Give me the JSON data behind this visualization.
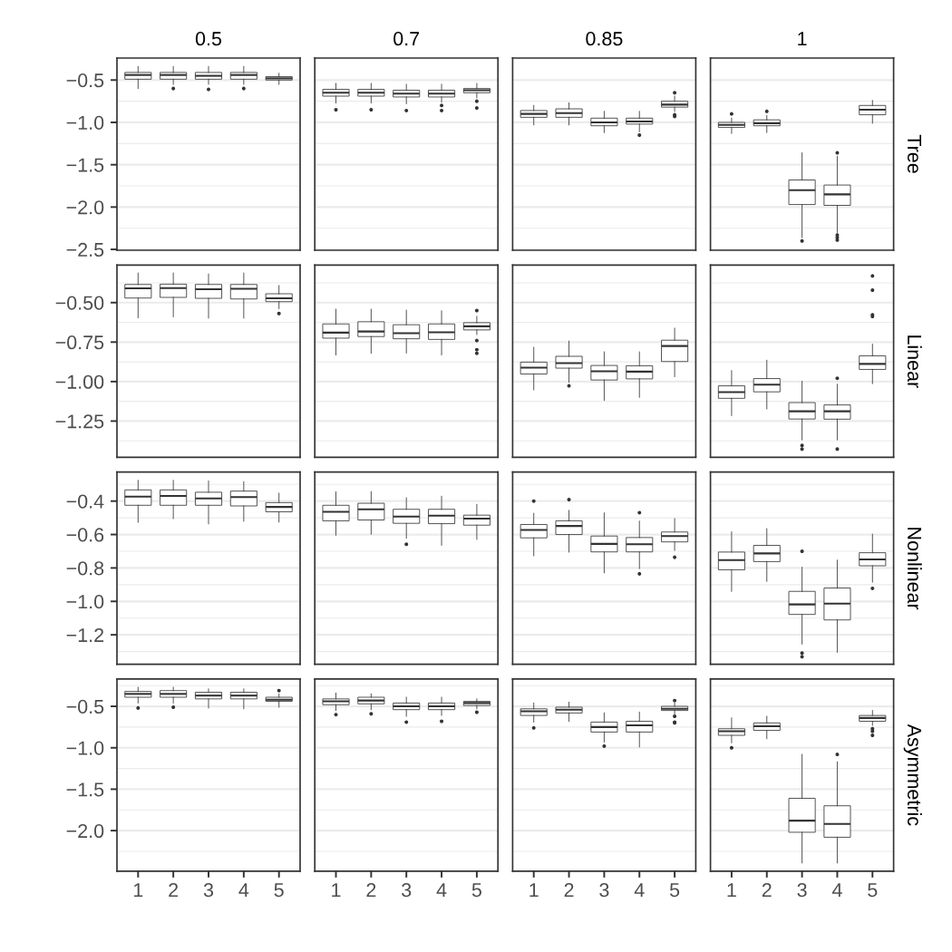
{
  "chart_data": [
    {
      "type": "box",
      "title": "0.5",
      "categories": [
        "1",
        "2",
        "3",
        "4",
        "5"
      ],
      "color": "#333333",
      "grid": "y",
      "tick_labels": "y",
      "ylim": [
        -2.51,
        -0.24
      ],
      "yticks": [
        {
          "value": -0.5,
          "label": "−0.5"
        },
        {
          "value": -1.0,
          "label": "−1.0"
        },
        {
          "value": -1.5,
          "label": "−1.5"
        },
        {
          "value": -2.0,
          "label": "−2.0"
        },
        {
          "value": -2.5,
          "label": "−2.5"
        }
      ],
      "boxes": [
        {
          "low": -0.6,
          "q1": -0.49,
          "median": -0.44,
          "q3": -0.41,
          "high": -0.34
        },
        {
          "low": -0.55,
          "q1": -0.49,
          "median": -0.44,
          "q3": -0.41,
          "high": -0.34,
          "outliers": [
            -0.6
          ]
        },
        {
          "low": -0.55,
          "q1": -0.49,
          "median": -0.45,
          "q3": -0.41,
          "high": -0.34,
          "outliers": [
            -0.61
          ]
        },
        {
          "low": -0.55,
          "q1": -0.49,
          "median": -0.44,
          "q3": -0.41,
          "high": -0.34,
          "outliers": [
            -0.6
          ]
        },
        {
          "low": -0.55,
          "q1": -0.5,
          "median": -0.48,
          "q3": -0.46,
          "high": -0.42
        }
      ]
    },
    {
      "type": "box",
      "title": "0.7",
      "categories": [
        "1",
        "2",
        "3",
        "4",
        "5"
      ],
      "color": "#333333",
      "grid": "y",
      "tick_labels": false,
      "ylim": [
        -2.51,
        -0.24
      ],
      "yticks": [
        -0.5,
        -1.0,
        -1.5,
        -2.0,
        -2.5
      ],
      "boxes": [
        {
          "low": -0.77,
          "q1": -0.69,
          "median": -0.65,
          "q3": -0.61,
          "high": -0.54,
          "outliers": [
            -0.85
          ]
        },
        {
          "low": -0.77,
          "q1": -0.69,
          "median": -0.65,
          "q3": -0.61,
          "high": -0.54,
          "outliers": [
            -0.85
          ]
        },
        {
          "low": -0.78,
          "q1": -0.7,
          "median": -0.66,
          "q3": -0.62,
          "high": -0.55,
          "outliers": [
            -0.86
          ]
        },
        {
          "low": -0.76,
          "q1": -0.7,
          "median": -0.66,
          "q3": -0.62,
          "high": -0.55,
          "outliers": [
            -0.8,
            -0.86
          ]
        },
        {
          "low": -0.71,
          "q1": -0.65,
          "median": -0.62,
          "q3": -0.6,
          "high": -0.54,
          "outliers": [
            -0.75,
            -0.83
          ]
        }
      ]
    },
    {
      "type": "box",
      "title": "0.85",
      "categories": [
        "1",
        "2",
        "3",
        "4",
        "5"
      ],
      "color": "#333333",
      "grid": "y",
      "tick_labels": false,
      "ylim": [
        -2.51,
        -0.24
      ],
      "yticks": [
        -0.5,
        -1.0,
        -1.5,
        -2.0,
        -2.5
      ],
      "boxes": [
        {
          "low": -1.03,
          "q1": -0.94,
          "median": -0.9,
          "q3": -0.86,
          "high": -0.8
        },
        {
          "low": -1.03,
          "q1": -0.94,
          "median": -0.89,
          "q3": -0.84,
          "high": -0.77
        },
        {
          "low": -1.12,
          "q1": -1.04,
          "median": -1.0,
          "q3": -0.95,
          "high": -0.87
        },
        {
          "low": -1.11,
          "q1": -1.02,
          "median": -0.99,
          "q3": -0.95,
          "high": -0.87,
          "outliers": [
            -1.15
          ]
        },
        {
          "low": -0.87,
          "q1": -0.82,
          "median": -0.79,
          "q3": -0.75,
          "high": -0.69,
          "outliers": [
            -0.65,
            -0.91,
            -0.93
          ]
        }
      ]
    },
    {
      "type": "box",
      "title": "1",
      "y2label": "Tree",
      "categories": [
        "1",
        "2",
        "3",
        "4",
        "5"
      ],
      "color": "#333333",
      "grid": "y",
      "tick_labels": false,
      "ylim": [
        -2.51,
        -0.24
      ],
      "yticks": [
        -0.5,
        -1.0,
        -1.5,
        -2.0,
        -2.5
      ],
      "boxes": [
        {
          "low": -1.13,
          "q1": -1.06,
          "median": -1.03,
          "q3": -1.0,
          "high": -0.95,
          "outliers": [
            -0.9
          ]
        },
        {
          "low": -1.12,
          "q1": -1.04,
          "median": -1.01,
          "q3": -0.97,
          "high": -0.92,
          "outliers": [
            -0.87
          ]
        },
        {
          "low": -2.36,
          "q1": -1.97,
          "median": -1.8,
          "q3": -1.68,
          "high": -1.36,
          "outliers": [
            -2.4
          ]
        },
        {
          "low": -2.3,
          "q1": -1.98,
          "median": -1.85,
          "q3": -1.74,
          "high": -1.4,
          "outliers": [
            -1.36,
            -2.33,
            -2.36,
            -2.39
          ]
        },
        {
          "low": -1.01,
          "q1": -0.91,
          "median": -0.85,
          "q3": -0.8,
          "high": -0.74
        }
      ]
    },
    {
      "type": "box",
      "categories": [
        "1",
        "2",
        "3",
        "4",
        "5"
      ],
      "color": "#333333",
      "grid": "y",
      "tick_labels": "y",
      "ylim": [
        -1.479,
        -0.262
      ],
      "yticks": [
        {
          "value": -0.5,
          "label": "−0.50"
        },
        {
          "value": -0.75,
          "label": "−0.75"
        },
        {
          "value": -1.0,
          "label": "−1.00"
        },
        {
          "value": -1.25,
          "label": "−1.25"
        }
      ],
      "boxes": [
        {
          "low": -0.596,
          "q1": -0.471,
          "median": -0.41,
          "q3": -0.385,
          "high": -0.313
        },
        {
          "low": -0.59,
          "q1": -0.467,
          "median": -0.408,
          "q3": -0.383,
          "high": -0.313
        },
        {
          "low": -0.598,
          "q1": -0.473,
          "median": -0.415,
          "q3": -0.385,
          "high": -0.319
        },
        {
          "low": -0.598,
          "q1": -0.477,
          "median": -0.412,
          "q3": -0.385,
          "high": -0.313
        },
        {
          "low": -0.538,
          "q1": -0.494,
          "median": -0.473,
          "q3": -0.444,
          "high": -0.392,
          "outliers": [
            -0.569
          ]
        }
      ]
    },
    {
      "type": "box",
      "categories": [
        "1",
        "2",
        "3",
        "4",
        "5"
      ],
      "color": "#333333",
      "grid": "y",
      "tick_labels": false,
      "ylim": [
        -1.479,
        -0.262
      ],
      "yticks": [
        -0.5,
        -0.75,
        -1.0,
        -1.25
      ],
      "boxes": [
        {
          "low": -0.831,
          "q1": -0.725,
          "median": -0.69,
          "q3": -0.635,
          "high": -0.542
        },
        {
          "low": -0.821,
          "q1": -0.715,
          "median": -0.683,
          "q3": -0.621,
          "high": -0.542
        },
        {
          "low": -0.819,
          "q1": -0.729,
          "median": -0.694,
          "q3": -0.64,
          "high": -0.548
        },
        {
          "low": -0.831,
          "q1": -0.733,
          "median": -0.688,
          "q3": -0.635,
          "high": -0.552
        },
        {
          "low": -0.702,
          "q1": -0.673,
          "median": -0.65,
          "q3": -0.627,
          "high": -0.587,
          "outliers": [
            -0.55,
            -0.74,
            -0.798,
            -0.821
          ]
        }
      ]
    },
    {
      "type": "box",
      "categories": [
        "1",
        "2",
        "3",
        "4",
        "5"
      ],
      "color": "#333333",
      "grid": "y",
      "tick_labels": false,
      "ylim": [
        -1.479,
        -0.262
      ],
      "yticks": [
        -0.5,
        -0.75,
        -1.0,
        -1.25
      ],
      "boxes": [
        {
          "low": -1.052,
          "q1": -0.952,
          "median": -0.912,
          "q3": -0.877,
          "high": -0.783
        },
        {
          "low": -1.004,
          "q1": -0.915,
          "median": -0.883,
          "q3": -0.84,
          "high": -0.744,
          "outliers": [
            -1.027
          ]
        },
        {
          "low": -1.119,
          "q1": -0.99,
          "median": -0.935,
          "q3": -0.898,
          "high": -0.812
        },
        {
          "low": -1.1,
          "q1": -0.983,
          "median": -0.937,
          "q3": -0.9,
          "high": -0.812
        },
        {
          "low": -0.969,
          "q1": -0.873,
          "median": -0.775,
          "q3": -0.738,
          "high": -0.662
        }
      ]
    },
    {
      "type": "box",
      "y2label": "Linear",
      "categories": [
        "1",
        "2",
        "3",
        "4",
        "5"
      ],
      "color": "#333333",
      "grid": "y",
      "tick_labels": false,
      "ylim": [
        -1.479,
        -0.262
      ],
      "yticks": [
        -0.5,
        -0.75,
        -1.0,
        -1.25
      ],
      "boxes": [
        {
          "low": -1.215,
          "q1": -1.106,
          "median": -1.067,
          "q3": -1.027,
          "high": -0.931
        },
        {
          "low": -1.173,
          "q1": -1.065,
          "median": -1.019,
          "q3": -0.981,
          "high": -0.865
        },
        {
          "low": -1.369,
          "q1": -1.237,
          "median": -1.188,
          "q3": -1.133,
          "high": -0.998,
          "outliers": [
            -1.404,
            -1.427
          ]
        },
        {
          "low": -1.369,
          "q1": -1.238,
          "median": -1.188,
          "q3": -1.148,
          "high": -1.017,
          "outliers": [
            -0.979,
            -1.427
          ]
        },
        {
          "low": -1.013,
          "q1": -0.923,
          "median": -0.888,
          "q3": -0.837,
          "high": -0.763,
          "outliers": [
            -0.331,
            -0.421,
            -0.577,
            -0.588
          ]
        }
      ]
    },
    {
      "type": "box",
      "categories": [
        "1",
        "2",
        "3",
        "4",
        "5"
      ],
      "color": "#333333",
      "grid": "y",
      "tick_labels": "y",
      "ylim": [
        -1.376,
        -0.226
      ],
      "yticks": [
        {
          "value": -0.4,
          "label": "−0.4"
        },
        {
          "value": -0.6,
          "label": "−0.6"
        },
        {
          "value": -0.8,
          "label": "−0.8"
        },
        {
          "value": -1.0,
          "label": "−1.0"
        },
        {
          "value": -1.2,
          "label": "−1.2"
        }
      ],
      "boxes": [
        {
          "low": -0.527,
          "q1": -0.425,
          "median": -0.373,
          "q3": -0.333,
          "high": -0.276
        },
        {
          "low": -0.505,
          "q1": -0.425,
          "median": -0.369,
          "q3": -0.333,
          "high": -0.276
        },
        {
          "low": -0.536,
          "q1": -0.425,
          "median": -0.384,
          "q3": -0.347,
          "high": -0.28
        },
        {
          "low": -0.52,
          "q1": -0.429,
          "median": -0.376,
          "q3": -0.34,
          "high": -0.284
        },
        {
          "low": -0.525,
          "q1": -0.464,
          "median": -0.435,
          "q3": -0.409,
          "high": -0.353
        }
      ]
    },
    {
      "type": "box",
      "categories": [
        "1",
        "2",
        "3",
        "4",
        "5"
      ],
      "color": "#333333",
      "grid": "y",
      "tick_labels": false,
      "ylim": [
        -1.376,
        -0.226
      ],
      "yticks": [
        -0.4,
        -0.6,
        -0.8,
        -1.0,
        -1.2
      ],
      "boxes": [
        {
          "low": -0.604,
          "q1": -0.518,
          "median": -0.464,
          "q3": -0.425,
          "high": -0.345
        },
        {
          "low": -0.598,
          "q1": -0.513,
          "median": -0.449,
          "q3": -0.413,
          "high": -0.344
        },
        {
          "low": -0.622,
          "q1": -0.533,
          "median": -0.493,
          "q3": -0.449,
          "high": -0.38,
          "outliers": [
            -0.658
          ]
        },
        {
          "low": -0.664,
          "q1": -0.535,
          "median": -0.487,
          "q3": -0.449,
          "high": -0.371
        },
        {
          "low": -0.629,
          "q1": -0.544,
          "median": -0.505,
          "q3": -0.484,
          "high": -0.42
        }
      ]
    },
    {
      "type": "box",
      "categories": [
        "1",
        "2",
        "3",
        "4",
        "5"
      ],
      "color": "#333333",
      "grid": "y",
      "tick_labels": false,
      "ylim": [
        -1.376,
        -0.226
      ],
      "yticks": [
        -0.4,
        -0.6,
        -0.8,
        -1.0,
        -1.2
      ],
      "boxes": [
        {
          "low": -0.727,
          "q1": -0.62,
          "median": -0.573,
          "q3": -0.54,
          "high": -0.473,
          "outliers": [
            -0.4
          ]
        },
        {
          "low": -0.705,
          "q1": -0.6,
          "median": -0.549,
          "q3": -0.518,
          "high": -0.456,
          "outliers": [
            -0.391
          ]
        },
        {
          "low": -0.829,
          "q1": -0.704,
          "median": -0.656,
          "q3": -0.609,
          "high": -0.471
        },
        {
          "low": -0.804,
          "q1": -0.704,
          "median": -0.658,
          "q3": -0.618,
          "high": -0.52,
          "outliers": [
            -0.469,
            -0.835
          ]
        },
        {
          "low": -0.695,
          "q1": -0.644,
          "median": -0.609,
          "q3": -0.585,
          "high": -0.505,
          "outliers": [
            -0.736
          ]
        }
      ]
    },
    {
      "type": "box",
      "y2label": "Nonlinear",
      "categories": [
        "1",
        "2",
        "3",
        "4",
        "5"
      ],
      "color": "#333333",
      "grid": "y",
      "tick_labels": false,
      "ylim": [
        -1.376,
        -0.226
      ],
      "yticks": [
        -0.4,
        -0.6,
        -0.8,
        -1.0,
        -1.2
      ],
      "boxes": [
        {
          "low": -0.94,
          "q1": -0.811,
          "median": -0.753,
          "q3": -0.705,
          "high": -0.584
        },
        {
          "low": -0.88,
          "q1": -0.762,
          "median": -0.713,
          "q3": -0.665,
          "high": -0.565
        },
        {
          "low": -1.255,
          "q1": -1.078,
          "median": -1.018,
          "q3": -0.94,
          "high": -0.796,
          "outliers": [
            -0.7,
            -1.309,
            -1.331
          ]
        },
        {
          "low": -1.304,
          "q1": -1.111,
          "median": -1.013,
          "q3": -0.92,
          "high": -0.753
        },
        {
          "low": -0.885,
          "q1": -0.787,
          "median": -0.749,
          "q3": -0.709,
          "high": -0.598,
          "outliers": [
            -0.922
          ]
        }
      ]
    },
    {
      "type": "box",
      "categories": [
        "1",
        "2",
        "3",
        "4",
        "5"
      ],
      "color": "#333333",
      "grid": "y",
      "ylim": [
        -2.49,
        -0.17
      ],
      "yticks": [
        {
          "value": -0.5,
          "label": "−0.5"
        },
        {
          "value": -1.0,
          "label": "−1.0"
        },
        {
          "value": -1.5,
          "label": "−1.5"
        },
        {
          "value": -2.0,
          "label": "−2.0"
        }
      ],
      "boxes": [
        {
          "low": -0.46,
          "q1": -0.39,
          "median": -0.35,
          "q3": -0.32,
          "high": -0.27,
          "outliers": [
            -0.52
          ]
        },
        {
          "low": -0.46,
          "q1": -0.39,
          "median": -0.35,
          "q3": -0.31,
          "high": -0.27,
          "outliers": [
            -0.51
          ]
        },
        {
          "low": -0.52,
          "q1": -0.41,
          "median": -0.37,
          "q3": -0.33,
          "high": -0.29
        },
        {
          "low": -0.53,
          "q1": -0.41,
          "median": -0.37,
          "q3": -0.33,
          "high": -0.29
        },
        {
          "low": -0.51,
          "q1": -0.44,
          "median": -0.42,
          "q3": -0.39,
          "high": -0.35,
          "outliers": [
            -0.31
          ]
        }
      ]
    },
    {
      "type": "box",
      "categories": [
        "1",
        "2",
        "3",
        "4",
        "5"
      ],
      "color": "#333333",
      "grid": "y",
      "tick_labels": "x",
      "ylim": [
        -2.49,
        -0.17
      ],
      "yticks": [
        -0.5,
        -1.0,
        -1.5,
        -2.0
      ],
      "boxes": [
        {
          "low": -0.55,
          "q1": -0.48,
          "median": -0.44,
          "q3": -0.41,
          "high": -0.34,
          "outliers": [
            -0.6
          ]
        },
        {
          "low": -0.54,
          "q1": -0.47,
          "median": -0.43,
          "q3": -0.39,
          "high": -0.35,
          "outliers": [
            -0.59
          ]
        },
        {
          "low": -0.62,
          "q1": -0.54,
          "median": -0.5,
          "q3": -0.46,
          "high": -0.39,
          "outliers": [
            -0.69
          ]
        },
        {
          "low": -0.61,
          "q1": -0.54,
          "median": -0.5,
          "q3": -0.46,
          "high": -0.39,
          "outliers": [
            -0.68
          ]
        },
        {
          "low": -0.53,
          "q1": -0.49,
          "median": -0.46,
          "q3": -0.44,
          "high": -0.41,
          "outliers": [
            -0.57
          ]
        }
      ]
    },
    {
      "type": "box",
      "categories": [
        "1",
        "2",
        "3",
        "4",
        "5"
      ],
      "color": "#333333",
      "grid": "y",
      "tick_labels": "x",
      "ylim": [
        -2.49,
        -0.17
      ],
      "yticks": [
        -0.5,
        -1.0,
        -1.5,
        -2.0
      ],
      "boxes": [
        {
          "low": -0.69,
          "q1": -0.61,
          "median": -0.56,
          "q3": -0.53,
          "high": -0.46,
          "outliers": [
            -0.76
          ]
        },
        {
          "low": -0.68,
          "q1": -0.58,
          "median": -0.54,
          "q3": -0.51,
          "high": -0.45
        },
        {
          "low": -0.93,
          "q1": -0.81,
          "median": -0.75,
          "q3": -0.69,
          "high": -0.58,
          "outliers": [
            -0.98
          ]
        },
        {
          "low": -0.99,
          "q1": -0.81,
          "median": -0.73,
          "q3": -0.68,
          "high": -0.57
        },
        {
          "low": -0.6,
          "q1": -0.55,
          "median": -0.53,
          "q3": -0.5,
          "high": -0.46,
          "outliers": [
            -0.43,
            -0.62,
            -0.69,
            -0.7
          ]
        }
      ]
    },
    {
      "type": "box",
      "y2label": "Asymmetric",
      "categories": [
        "1",
        "2",
        "3",
        "4",
        "5"
      ],
      "color": "#333333",
      "grid": "y",
      "tick_labels": "x",
      "ylim": [
        -2.49,
        -0.17
      ],
      "yticks": [
        -0.5,
        -1.0,
        -1.5,
        -2.0
      ],
      "boxes": [
        {
          "low": -0.94,
          "q1": -0.85,
          "median": -0.8,
          "q3": -0.77,
          "high": -0.64,
          "outliers": [
            -1.0
          ]
        },
        {
          "low": -0.89,
          "q1": -0.79,
          "median": -0.74,
          "q3": -0.7,
          "high": -0.62
        },
        {
          "low": -2.39,
          "q1": -2.02,
          "median": -1.88,
          "q3": -1.61,
          "high": -1.08
        },
        {
          "low": -2.39,
          "q1": -2.08,
          "median": -1.92,
          "q3": -1.7,
          "high": -1.17,
          "outliers": [
            -1.08
          ]
        },
        {
          "low": -0.73,
          "q1": -0.68,
          "median": -0.64,
          "q3": -0.61,
          "high": -0.55,
          "outliers": [
            -0.77,
            -0.8,
            -0.85
          ]
        }
      ]
    }
  ]
}
